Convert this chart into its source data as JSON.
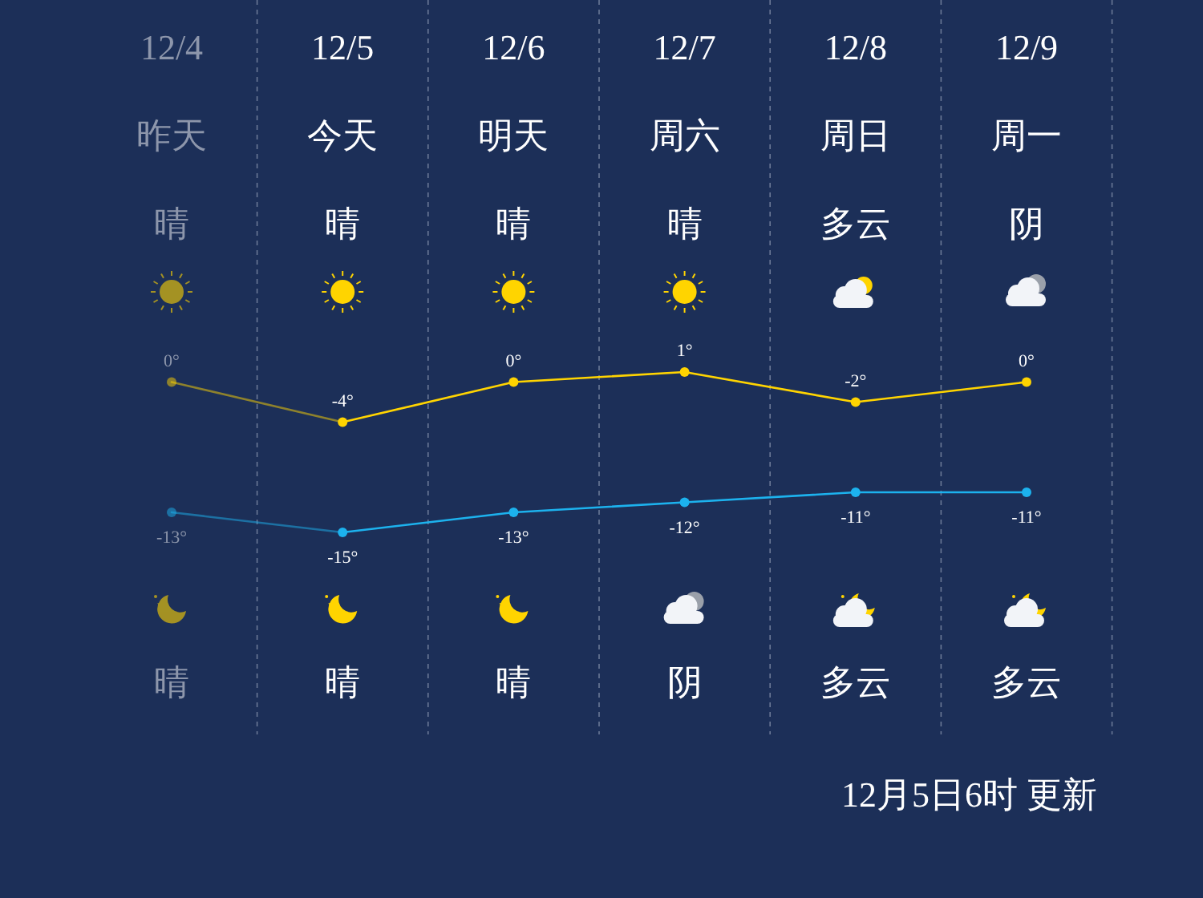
{
  "chart_data": {
    "type": "line",
    "categories": [
      "12/4",
      "12/5",
      "12/6",
      "12/7",
      "12/8",
      "12/9"
    ],
    "series": [
      {
        "color": "#ffd400",
        "values": [
          0,
          -4,
          0,
          1,
          -2,
          0
        ],
        "value_labels": [
          "0°",
          "-4°",
          "0°",
          "1°",
          "-2°",
          "0°"
        ]
      },
      {
        "color": "#1cb2ee",
        "values": [
          -13,
          -15,
          -13,
          -12,
          -11,
          -11
        ],
        "value_labels": [
          "-13°",
          "-15°",
          "-13°",
          "-12°",
          "-11°",
          "-11°"
        ]
      }
    ],
    "marker": "circle",
    "line_style": "solid",
    "annotations": [
      "昨天",
      "今天",
      "明天",
      "周六",
      "周日",
      "周一",
      "晴",
      "晴",
      "晴",
      "晴",
      "多云",
      "阴",
      "晴",
      "晴",
      "晴",
      "阴",
      "多云",
      "多云",
      "12月5日6时 更新"
    ]
  }
}
